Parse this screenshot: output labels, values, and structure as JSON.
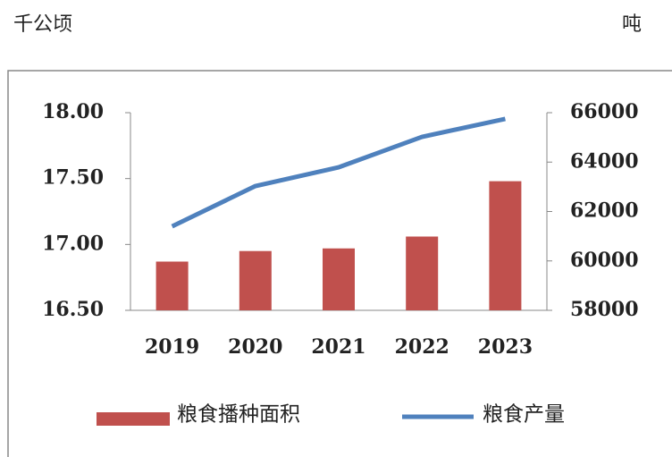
{
  "chart_data": {
    "type": "bar",
    "y_label": "千公顷",
    "y2_label": "吨",
    "categories": [
      "2019",
      "2020",
      "2021",
      "2022",
      "2023"
    ],
    "series": [
      {
        "name": "粮食播种面积",
        "type": "bar",
        "color": "#c0504d",
        "values": [
          16.87,
          16.95,
          16.97,
          17.06,
          17.48
        ]
      },
      {
        "name": "粮食产量",
        "type": "line",
        "axis": "y2",
        "color": "#4f81bd",
        "values": [
          61400,
          63030,
          63790,
          65020,
          65750
        ]
      }
    ],
    "ylim": [
      16.5,
      18.0
    ],
    "yticks": [
      {
        "value": 18.0,
        "label": "18.00"
      },
      {
        "value": 17.5,
        "label": "17.50"
      },
      {
        "value": 17.0,
        "label": "17.00"
      },
      {
        "value": 16.5,
        "label": "16.50"
      }
    ],
    "y2lim": [
      58000,
      66000
    ],
    "y2ticks": [
      58000,
      60000,
      62000,
      64000,
      66000
    ],
    "grid": false
  }
}
